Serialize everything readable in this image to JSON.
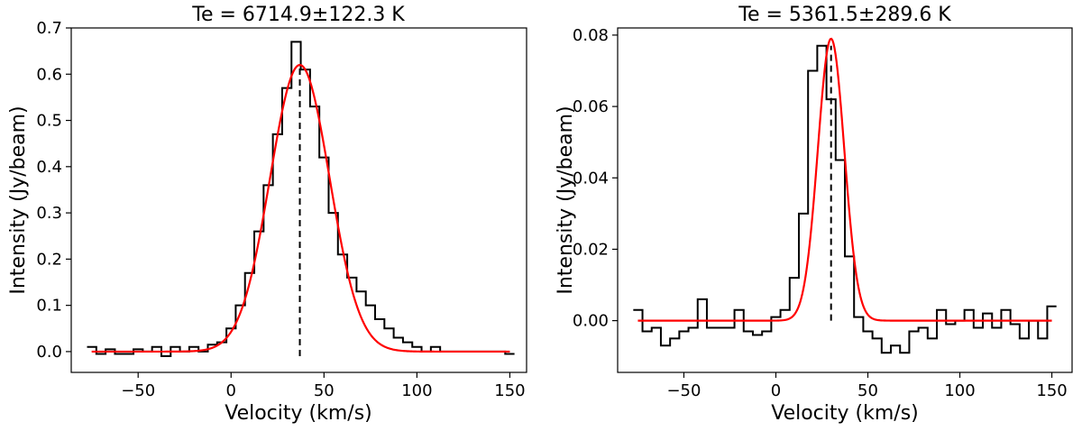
{
  "chart_data": [
    {
      "type": "line",
      "title": "Te = 6714.9±122.3 K",
      "xlabel": "Velocity (km/s)",
      "ylabel": "Intensity (Jy/beam)",
      "xlim": [
        -86,
        159
      ],
      "ylim": [
        -0.045,
        0.7
      ],
      "xticks": [
        -50,
        0,
        50,
        100,
        150
      ],
      "xtick_labels": [
        "−50",
        "0",
        "50",
        "100",
        "150"
      ],
      "yticks": [
        0.0,
        0.1,
        0.2,
        0.3,
        0.4,
        0.5,
        0.6,
        0.7
      ],
      "ytick_labels": [
        "0.0",
        "0.1",
        "0.2",
        "0.3",
        "0.4",
        "0.5",
        "0.6",
        "0.7"
      ],
      "grid": false,
      "series": [
        {
          "kind": "step",
          "color": "#000000",
          "bin_width": 5,
          "x": [
            -75,
            -70,
            -65,
            -60,
            -55,
            -50,
            -45,
            -40,
            -35,
            -30,
            -25,
            -20,
            -15,
            -10,
            -5,
            0,
            5,
            10,
            15,
            20,
            25,
            30,
            35,
            40,
            45,
            50,
            55,
            60,
            65,
            70,
            75,
            80,
            85,
            90,
            95,
            100,
            105,
            110,
            115,
            120,
            125,
            130,
            135,
            140,
            145,
            150
          ],
          "y": [
            0.01,
            -0.005,
            0.005,
            -0.005,
            -0.005,
            0.005,
            0.0,
            0.01,
            -0.01,
            0.01,
            0.0,
            0.01,
            0.0,
            0.015,
            0.02,
            0.05,
            0.1,
            0.17,
            0.26,
            0.36,
            0.47,
            0.57,
            0.67,
            0.61,
            0.53,
            0.42,
            0.3,
            0.21,
            0.16,
            0.13,
            0.1,
            0.07,
            0.05,
            0.03,
            0.02,
            0.01,
            0.0,
            0.01,
            0.0,
            0.0,
            0.0,
            0.0,
            0.0,
            0.0,
            0.0,
            -0.005
          ]
        },
        {
          "kind": "gaussian",
          "color": "#ff0000",
          "amplitude": 0.62,
          "center": 37,
          "sigma": 16,
          "baseline": 0.0,
          "x_range": [
            -75,
            150
          ]
        }
      ],
      "vline": {
        "x": 37,
        "y_from": -0.01,
        "y_to": 0.62,
        "style": "dashed",
        "color": "#000000"
      }
    },
    {
      "type": "line",
      "title": "Te = 5361.5±289.6 K",
      "xlabel": "Velocity (km/s)",
      "ylabel": "Intensity (Jy/beam)",
      "xlim": [
        -86,
        161
      ],
      "ylim": [
        -0.0145,
        0.082
      ],
      "xticks": [
        -50,
        0,
        50,
        100,
        150
      ],
      "xtick_labels": [
        "−50",
        "0",
        "50",
        "100",
        "150"
      ],
      "yticks": [
        0.0,
        0.02,
        0.04,
        0.06,
        0.08
      ],
      "ytick_labels": [
        "0.00",
        "0.02",
        "0.04",
        "0.06",
        "0.08"
      ],
      "grid": false,
      "series": [
        {
          "kind": "step",
          "color": "#000000",
          "bin_width": 5,
          "x": [
            -75,
            -70,
            -65,
            -60,
            -55,
            -50,
            -45,
            -40,
            -35,
            -30,
            -25,
            -20,
            -15,
            -10,
            -5,
            0,
            5,
            10,
            15,
            20,
            25,
            30,
            35,
            40,
            45,
            50,
            55,
            60,
            65,
            70,
            75,
            80,
            85,
            90,
            95,
            100,
            105,
            110,
            115,
            120,
            125,
            130,
            135,
            140,
            145,
            150
          ],
          "y": [
            0.003,
            -0.003,
            -0.002,
            -0.007,
            -0.005,
            -0.003,
            -0.002,
            0.006,
            -0.002,
            -0.002,
            -0.002,
            0.003,
            -0.003,
            -0.004,
            -0.003,
            0.001,
            0.003,
            0.012,
            0.03,
            0.07,
            0.077,
            0.062,
            0.045,
            0.018,
            0.001,
            -0.003,
            -0.005,
            -0.009,
            -0.007,
            -0.009,
            -0.003,
            -0.002,
            -0.005,
            0.003,
            -0.001,
            0.0,
            0.003,
            -0.002,
            0.002,
            -0.002,
            0.003,
            -0.001,
            -0.005,
            0.0,
            -0.005,
            0.004
          ]
        },
        {
          "kind": "gaussian",
          "color": "#ff0000",
          "amplitude": 0.079,
          "center": 30,
          "sigma": 7.2,
          "baseline": 0.0,
          "x_range": [
            -75,
            150
          ]
        }
      ],
      "vline": {
        "x": 30,
        "y_from": 0.0,
        "y_to": 0.077,
        "style": "dashed",
        "color": "#000000"
      }
    }
  ]
}
